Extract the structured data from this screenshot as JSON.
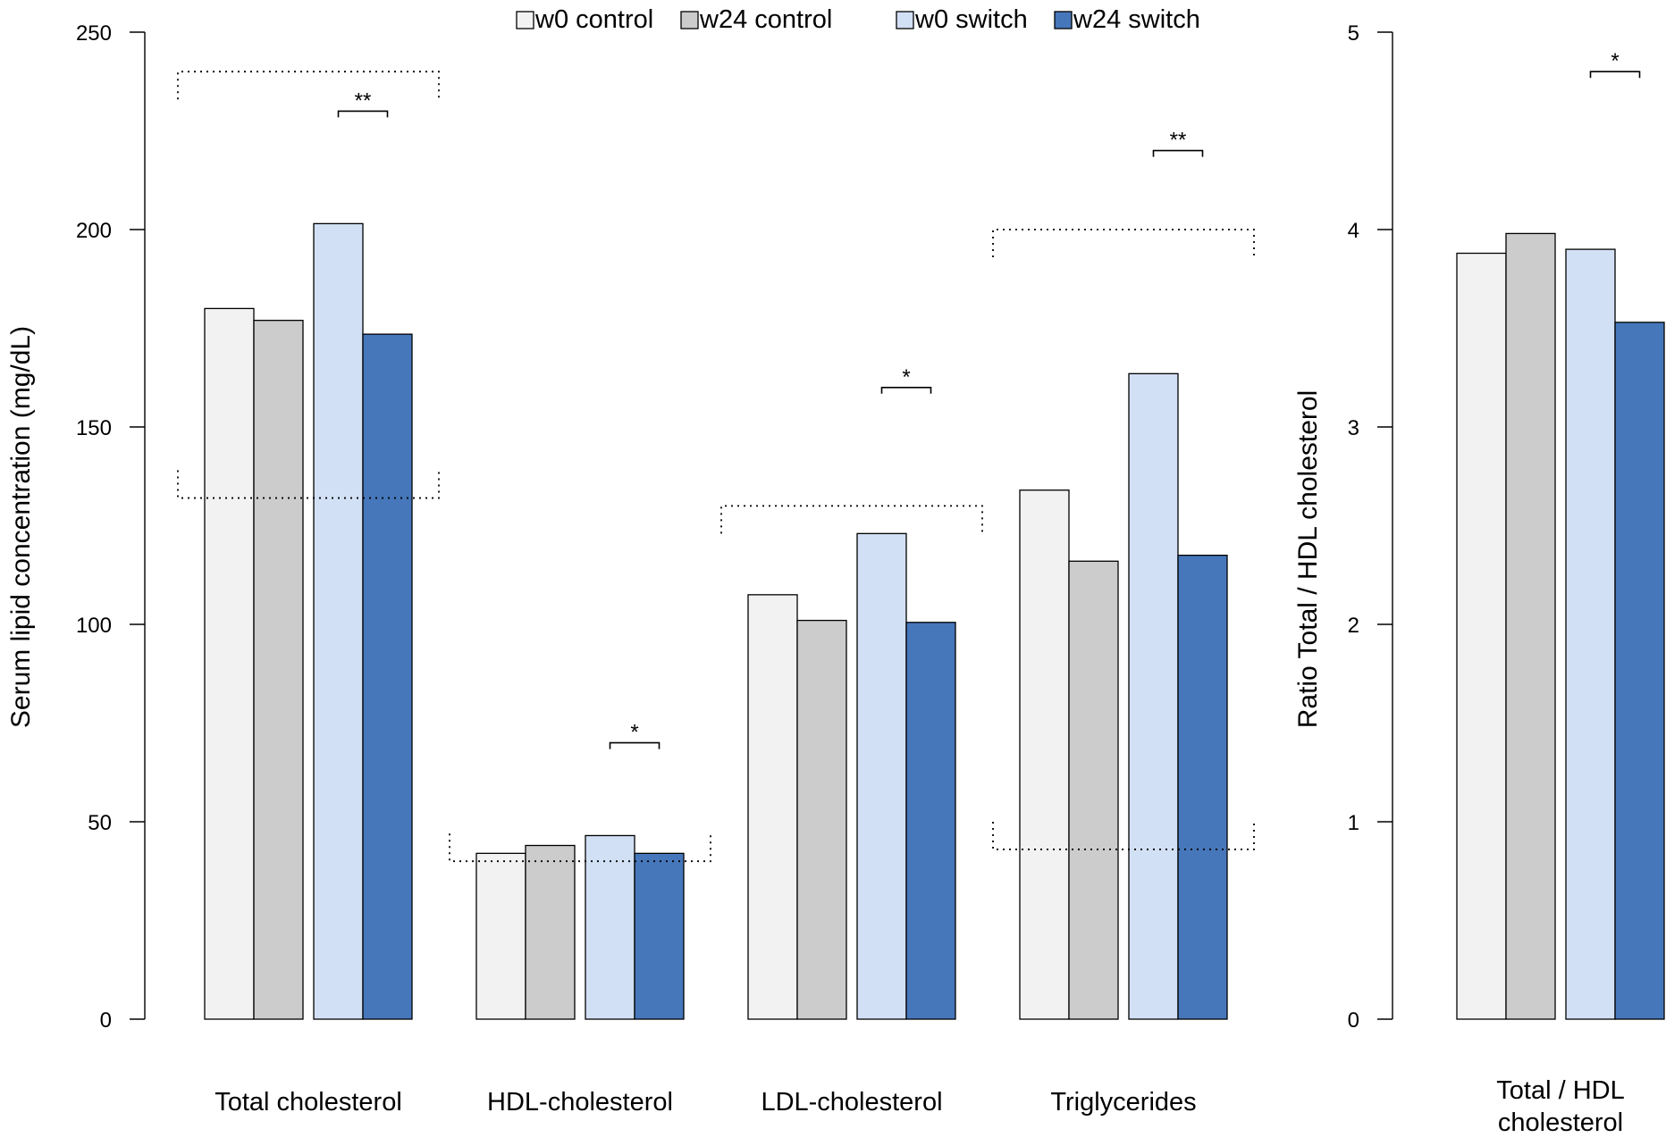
{
  "chart_data": [
    {
      "type": "bar",
      "ylabel": "Serum lipid concentration (mg/dL)",
      "ylim": [
        0,
        250
      ],
      "yticks": [
        0,
        50,
        100,
        150,
        200,
        250
      ],
      "categories": [
        "Total cholesterol",
        "HDL-cholesterol",
        "LDL-cholesterol",
        "Triglycerides"
      ],
      "series": [
        {
          "name": "w0 control",
          "color": "#f2f2f2",
          "values": [
            180,
            42,
            107.5,
            134
          ]
        },
        {
          "name": "w24 control",
          "color": "#cccccc",
          "values": [
            177,
            44,
            101,
            116
          ]
        },
        {
          "name": "w0 switch",
          "color": "#d2e0f5",
          "values": [
            201.5,
            46.5,
            123,
            163.5
          ]
        },
        {
          "name": "w24 switch",
          "color": "#4677ba",
          "values": [
            173.5,
            42,
            100.5,
            117.5
          ]
        }
      ],
      "reference_ranges": [
        {
          "category": "Total cholesterol",
          "lower": 132,
          "upper": 240
        },
        {
          "category": "HDL-cholesterol",
          "lower": 40,
          "upper": null
        },
        {
          "category": "LDL-cholesterol",
          "lower": null,
          "upper": 130
        },
        {
          "category": "Triglycerides",
          "lower": 43,
          "upper": 200
        }
      ],
      "significance": [
        {
          "category": "Total cholesterol",
          "label": "**",
          "y": 230
        },
        {
          "category": "HDL-cholesterol",
          "label": "*",
          "y": 70
        },
        {
          "category": "LDL-cholesterol",
          "label": "*",
          "y": 160
        },
        {
          "category": "Triglycerides",
          "label": "**",
          "y": 220
        }
      ],
      "legend": {
        "placement": "top-center",
        "items": [
          "w0 control",
          "w24 control",
          "w0 switch",
          "w24 switch"
        ]
      }
    },
    {
      "type": "bar",
      "ylabel": "Ratio Total / HDL cholesterol",
      "ylim": [
        0,
        5
      ],
      "yticks": [
        0,
        1,
        2,
        3,
        4,
        5
      ],
      "categories": [
        "Total / HDL cholesterol"
      ],
      "category_label_lines": [
        "Total / HDL",
        "cholesterol"
      ],
      "series": [
        {
          "name": "w0 control",
          "color": "#f2f2f2",
          "values": [
            3.88
          ]
        },
        {
          "name": "w24 control",
          "color": "#cccccc",
          "values": [
            3.98
          ]
        },
        {
          "name": "w0 switch",
          "color": "#d2e0f5",
          "values": [
            3.9
          ]
        },
        {
          "name": "w24 switch",
          "color": "#4677ba",
          "values": [
            3.53
          ]
        }
      ],
      "significance": [
        {
          "category": "Total / HDL cholesterol",
          "label": "*",
          "y": 4.8
        }
      ]
    }
  ]
}
